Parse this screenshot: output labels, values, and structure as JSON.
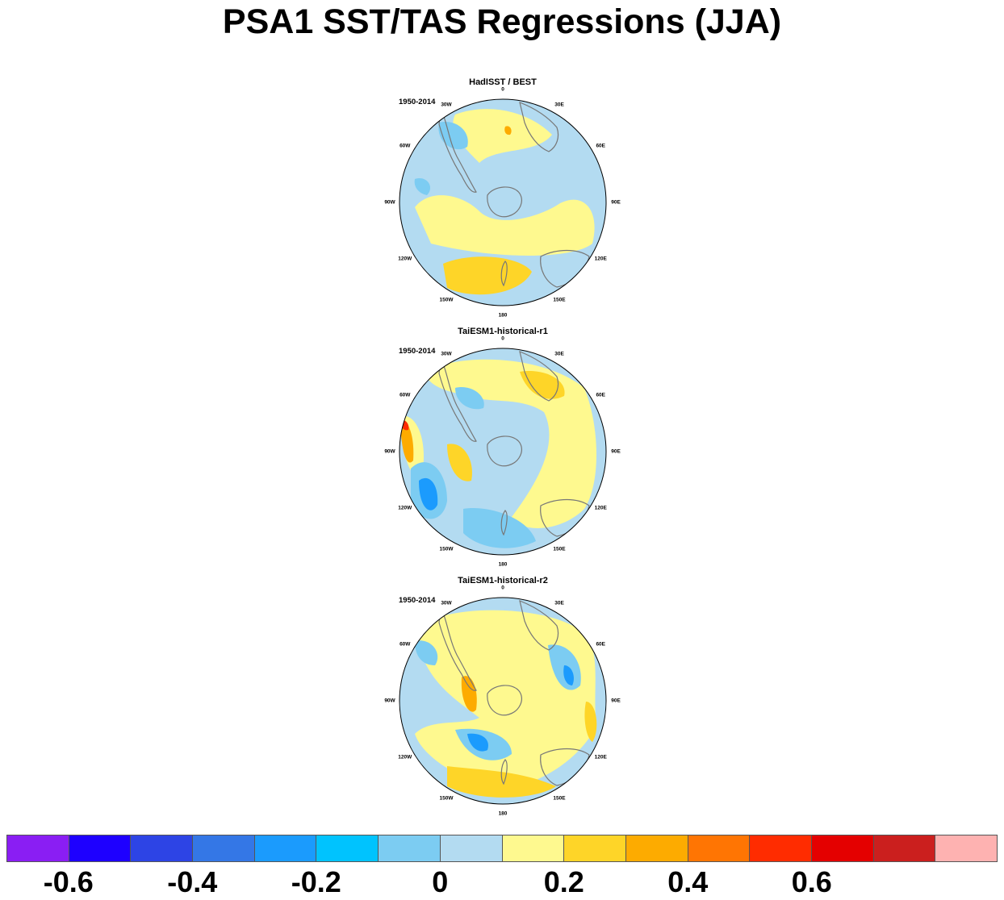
{
  "title": "PSA1 SST/TAS Regressions (JJA)",
  "colors": {
    "levels": [
      "#8a1ef3",
      "#1e00ff",
      "#2d44e5",
      "#3477e6",
      "#1b9bfd",
      "#00c3fe",
      "#7cccf2",
      "#b3dbf1",
      "#fef98f",
      "#fed528",
      "#fdab00",
      "#ff7503",
      "#ff2c00",
      "#e40000",
      "#cb1f1e",
      "#feb2b1"
    ],
    "land_outline": "#777777",
    "land_fill": "#ffffff"
  },
  "panels": [
    {
      "title": "HadISST / BEST",
      "period": "1950-2014"
    },
    {
      "title": "TaiESM1-historical-r1",
      "period": "1950-2014"
    },
    {
      "title": "TaiESM1-historical-r2",
      "period": "1950-2014"
    }
  ],
  "longitude_labels": [
    "0",
    "30E",
    "60E",
    "90E",
    "120E",
    "150E",
    "180",
    "150W",
    "120W",
    "90W",
    "60W",
    "30W"
  ],
  "colorbar": {
    "labels": [
      "-0.6",
      "-0.4",
      "-0.2",
      "0",
      "0.2",
      "0.4",
      "0.6"
    ]
  }
}
